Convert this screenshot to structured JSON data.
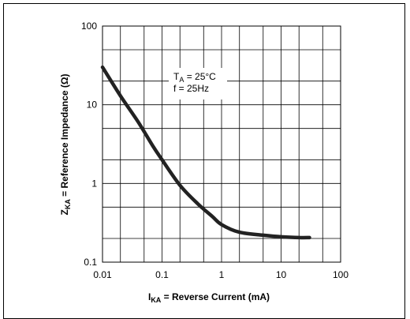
{
  "chart_data": {
    "type": "line",
    "x_scale": "log",
    "y_scale": "log",
    "xlim": [
      0.01,
      100
    ],
    "ylim": [
      0.1,
      100
    ],
    "grid": true,
    "x_ticks": [
      "0.01",
      "0.1",
      "1",
      "10",
      "100"
    ],
    "y_ticks": [
      "100",
      "10",
      "1",
      "0.1"
    ],
    "xlabel": {
      "prefix": "I",
      "sub": "KA",
      "rest": " = Reverse Current (mA)"
    },
    "ylabel": {
      "prefix": "Z",
      "sub": "KA",
      "rest": " = Reference Impedance (Ω)"
    },
    "annotation": {
      "line1_prefix": "T",
      "line1_sub": "A",
      "line1_rest": " = 25°C",
      "line2": "f = 25Hz"
    },
    "series": [
      {
        "x": [
          0.01,
          0.02,
          0.04,
          0.07,
          0.1,
          0.2,
          0.4,
          0.7,
          1.0,
          2.0,
          5.0,
          10,
          20,
          30
        ],
        "y": [
          30,
          13,
          6,
          3,
          2,
          0.95,
          0.55,
          0.38,
          0.3,
          0.24,
          0.22,
          0.21,
          0.205,
          0.205
        ]
      }
    ]
  }
}
